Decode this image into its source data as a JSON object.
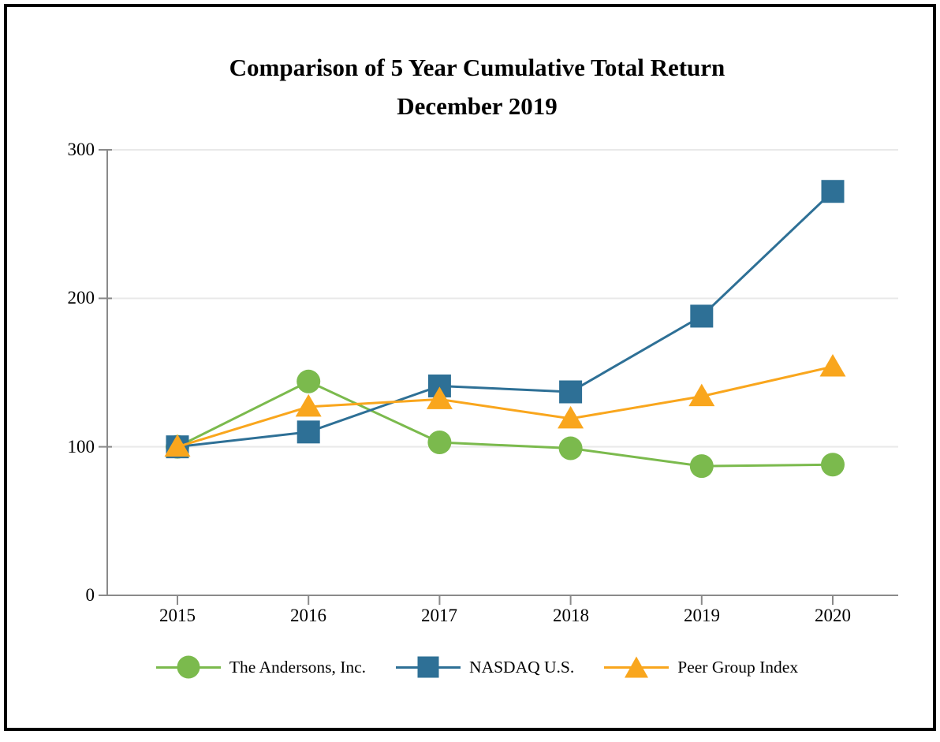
{
  "frame": {
    "border_color": "#000000",
    "background": "#ffffff"
  },
  "chart_data": {
    "type": "line",
    "title": "Comparison of 5 Year Cumulative Total Return",
    "subtitle": "December 2019",
    "categories": [
      "2015",
      "2016",
      "2017",
      "2018",
      "2019",
      "2020"
    ],
    "y_ticks": [
      "300",
      "200",
      "100",
      "0"
    ],
    "ylim": [
      0,
      300
    ],
    "grid": "horizontal-light",
    "legend_position": "bottom",
    "axis_color": "#8a8a8a",
    "gridline_color": "#e9e9e9",
    "series": [
      {
        "name": "The Andersons, Inc.",
        "marker": "circle",
        "color": "#7bba4d",
        "values": [
          100,
          144,
          103,
          99,
          87,
          88
        ]
      },
      {
        "name": "NASDAQ U.S.",
        "marker": "square",
        "color": "#2e7096",
        "values": [
          100,
          110,
          141,
          137,
          188,
          272
        ]
      },
      {
        "name": "Peer Group Index",
        "marker": "triangle",
        "color": "#f9a61d",
        "values": [
          100,
          127,
          132,
          119,
          134,
          154
        ]
      }
    ]
  }
}
